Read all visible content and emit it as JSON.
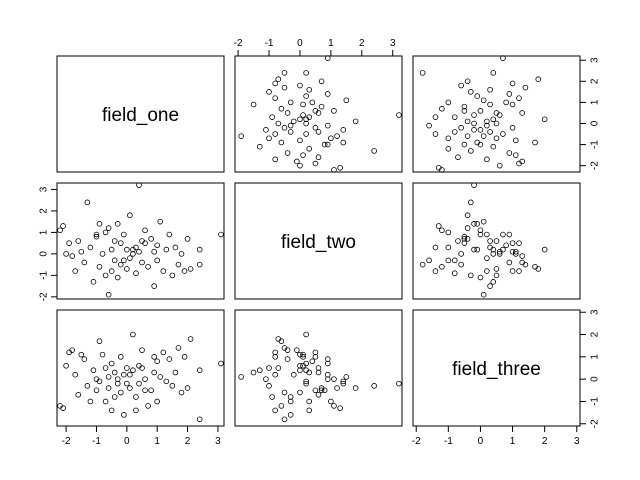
{
  "chart_data": {
    "type": "scatter",
    "subtype": "scatterplot-matrix",
    "variables": [
      "field_one",
      "field_two",
      "field_three"
    ],
    "axis_ranges": {
      "field_one": [
        -2.3,
        3.2
      ],
      "field_two": [
        -2.1,
        3.3
      ],
      "field_three": [
        -2.1,
        3.1
      ]
    },
    "tick_values": {
      "field_one": [
        -2,
        -1,
        0,
        1,
        2,
        3
      ],
      "field_two": [
        -2,
        -1,
        0,
        1,
        2,
        3
      ],
      "field_three": [
        -2,
        -1,
        0,
        1,
        2,
        3
      ]
    },
    "tick_labels": {
      "field_one": [
        "-2",
        "-1",
        "0",
        "1",
        "2",
        "3"
      ],
      "field_two": [
        "-2",
        "-1",
        "0",
        "1",
        "2",
        "3"
      ],
      "field_three": [
        "-2",
        "-1",
        "0",
        "1",
        "2",
        "3"
      ]
    },
    "observations": [
      [
        -2.2,
        1.1,
        -1.2
      ],
      [
        -2.1,
        1.3,
        -1.3
      ],
      [
        -2.0,
        0.0,
        0.6
      ],
      [
        -1.9,
        0.5,
        1.2
      ],
      [
        -1.8,
        -0.1,
        1.3
      ],
      [
        -1.7,
        -0.8,
        0.2
      ],
      [
        -1.6,
        0.6,
        -0.7
      ],
      [
        -1.5,
        0.1,
        1.1
      ],
      [
        -1.4,
        -0.4,
        0.9
      ],
      [
        -1.3,
        2.4,
        -0.3
      ],
      [
        -1.2,
        0.3,
        -1.0
      ],
      [
        -1.1,
        -1.3,
        0.4
      ],
      [
        -1.0,
        0.8,
        -0.5
      ],
      [
        -1.0,
        0.9,
        0.0
      ],
      [
        -0.9,
        -0.6,
        1.7
      ],
      [
        -0.9,
        1.4,
        -0.1
      ],
      [
        -0.8,
        0.0,
        1.1
      ],
      [
        -0.7,
        1.0,
        -1.0
      ],
      [
        -0.7,
        -1.0,
        0.5
      ],
      [
        -0.6,
        1.2,
        -0.4
      ],
      [
        -0.6,
        -1.9,
        0.1
      ],
      [
        -0.5,
        0.2,
        0.7
      ],
      [
        -0.5,
        -0.8,
        -1.4
      ],
      [
        -0.4,
        0.6,
        0.3
      ],
      [
        -0.4,
        -0.3,
        -0.8
      ],
      [
        -0.3,
        1.4,
        -0.2
      ],
      [
        -0.3,
        -1.1,
        0.0
      ],
      [
        -0.2,
        0.5,
        1.0
      ],
      [
        -0.2,
        -0.5,
        -0.6
      ],
      [
        -0.1,
        0.9,
        0.2
      ],
      [
        -0.1,
        -0.3,
        -1.6
      ],
      [
        0.0,
        0.2,
        -0.2
      ],
      [
        0.0,
        -0.7,
        0.5
      ],
      [
        0.1,
        1.8,
        -0.4
      ],
      [
        0.1,
        -0.2,
        0.2
      ],
      [
        0.2,
        0.0,
        0.4
      ],
      [
        0.2,
        0.2,
        2.0
      ],
      [
        0.3,
        -0.9,
        -0.8
      ],
      [
        0.3,
        0.3,
        -1.4
      ],
      [
        0.4,
        0.1,
        0.6
      ],
      [
        0.4,
        3.2,
        -0.2
      ],
      [
        0.5,
        -0.4,
        1.3
      ],
      [
        0.5,
        0.6,
        0.5
      ],
      [
        0.6,
        0.5,
        -0.5
      ],
      [
        0.6,
        1.1,
        0.0
      ],
      [
        0.7,
        -0.6,
        -1.2
      ],
      [
        0.8,
        0.7,
        -0.5
      ],
      [
        0.9,
        0.1,
        1.0
      ],
      [
        0.9,
        -1.5,
        0.3
      ],
      [
        1.0,
        0.4,
        0.8
      ],
      [
        1.0,
        -0.3,
        -1.0
      ],
      [
        1.1,
        1.5,
        0.1
      ],
      [
        1.2,
        -0.8,
        1.2
      ],
      [
        1.3,
        0.2,
        -0.1
      ],
      [
        1.4,
        0.9,
        0.9
      ],
      [
        1.5,
        -1.0,
        -0.3
      ],
      [
        1.6,
        0.3,
        0.3
      ],
      [
        1.7,
        -0.5,
        1.4
      ],
      [
        1.8,
        0.0,
        -0.6
      ],
      [
        1.9,
        -0.8,
        1.0
      ],
      [
        2.0,
        0.7,
        -0.4
      ],
      [
        2.1,
        -0.7,
        1.8
      ],
      [
        2.4,
        0.2,
        0.4
      ],
      [
        2.4,
        -0.5,
        -1.8
      ],
      [
        3.1,
        0.9,
        0.7
      ]
    ]
  }
}
